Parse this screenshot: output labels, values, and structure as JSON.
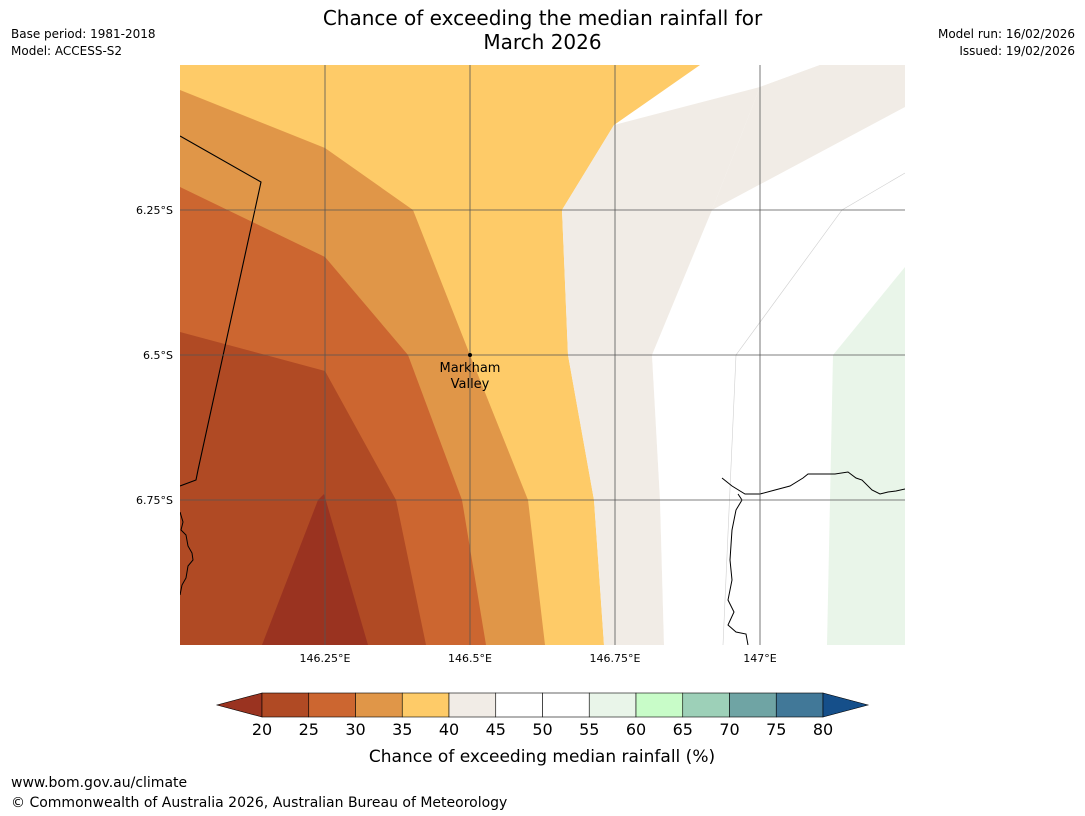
{
  "header": {
    "title_line1": "Chance of exceeding the median rainfall for",
    "title_line2": "March 2026",
    "base_period": "Base period: 1981-2018",
    "model": "Model: ACCESS-S2",
    "model_run": "Model run: 16/02/2026",
    "issued": "Issued: 19/02/2026"
  },
  "map": {
    "lat_labels": [
      "6.25°S",
      "6.5°S",
      "6.75°S"
    ],
    "lon_labels": [
      "146.25°E",
      "146.5°E",
      "146.75°E",
      "147°E"
    ],
    "place": {
      "name_line1": "Markham",
      "name_line2": "Valley"
    }
  },
  "legend": {
    "tick_labels": [
      "20",
      "25",
      "30",
      "35",
      "40",
      "45",
      "50",
      "55",
      "60",
      "65",
      "70",
      "75",
      "80"
    ],
    "colors": [
      "#9a3320",
      "#b04a24",
      "#cc6630",
      "#e09648",
      "#fecb68",
      "#f1ece6",
      "#ffffff",
      "#ffffff",
      "#e9f5e9",
      "#c8fcc8",
      "#9dd0b8",
      "#6fa4a4",
      "#417898",
      "#154f8a"
    ],
    "colors_note": "first and last colors are extension triangles (<20, >80)",
    "title": "Chance of exceeding median rainfall (%)"
  },
  "footer": {
    "url": "www.bom.gov.au/climate",
    "copyright": "© Commonwealth of Australia 2026, Australian Bureau of Meteorology"
  }
}
